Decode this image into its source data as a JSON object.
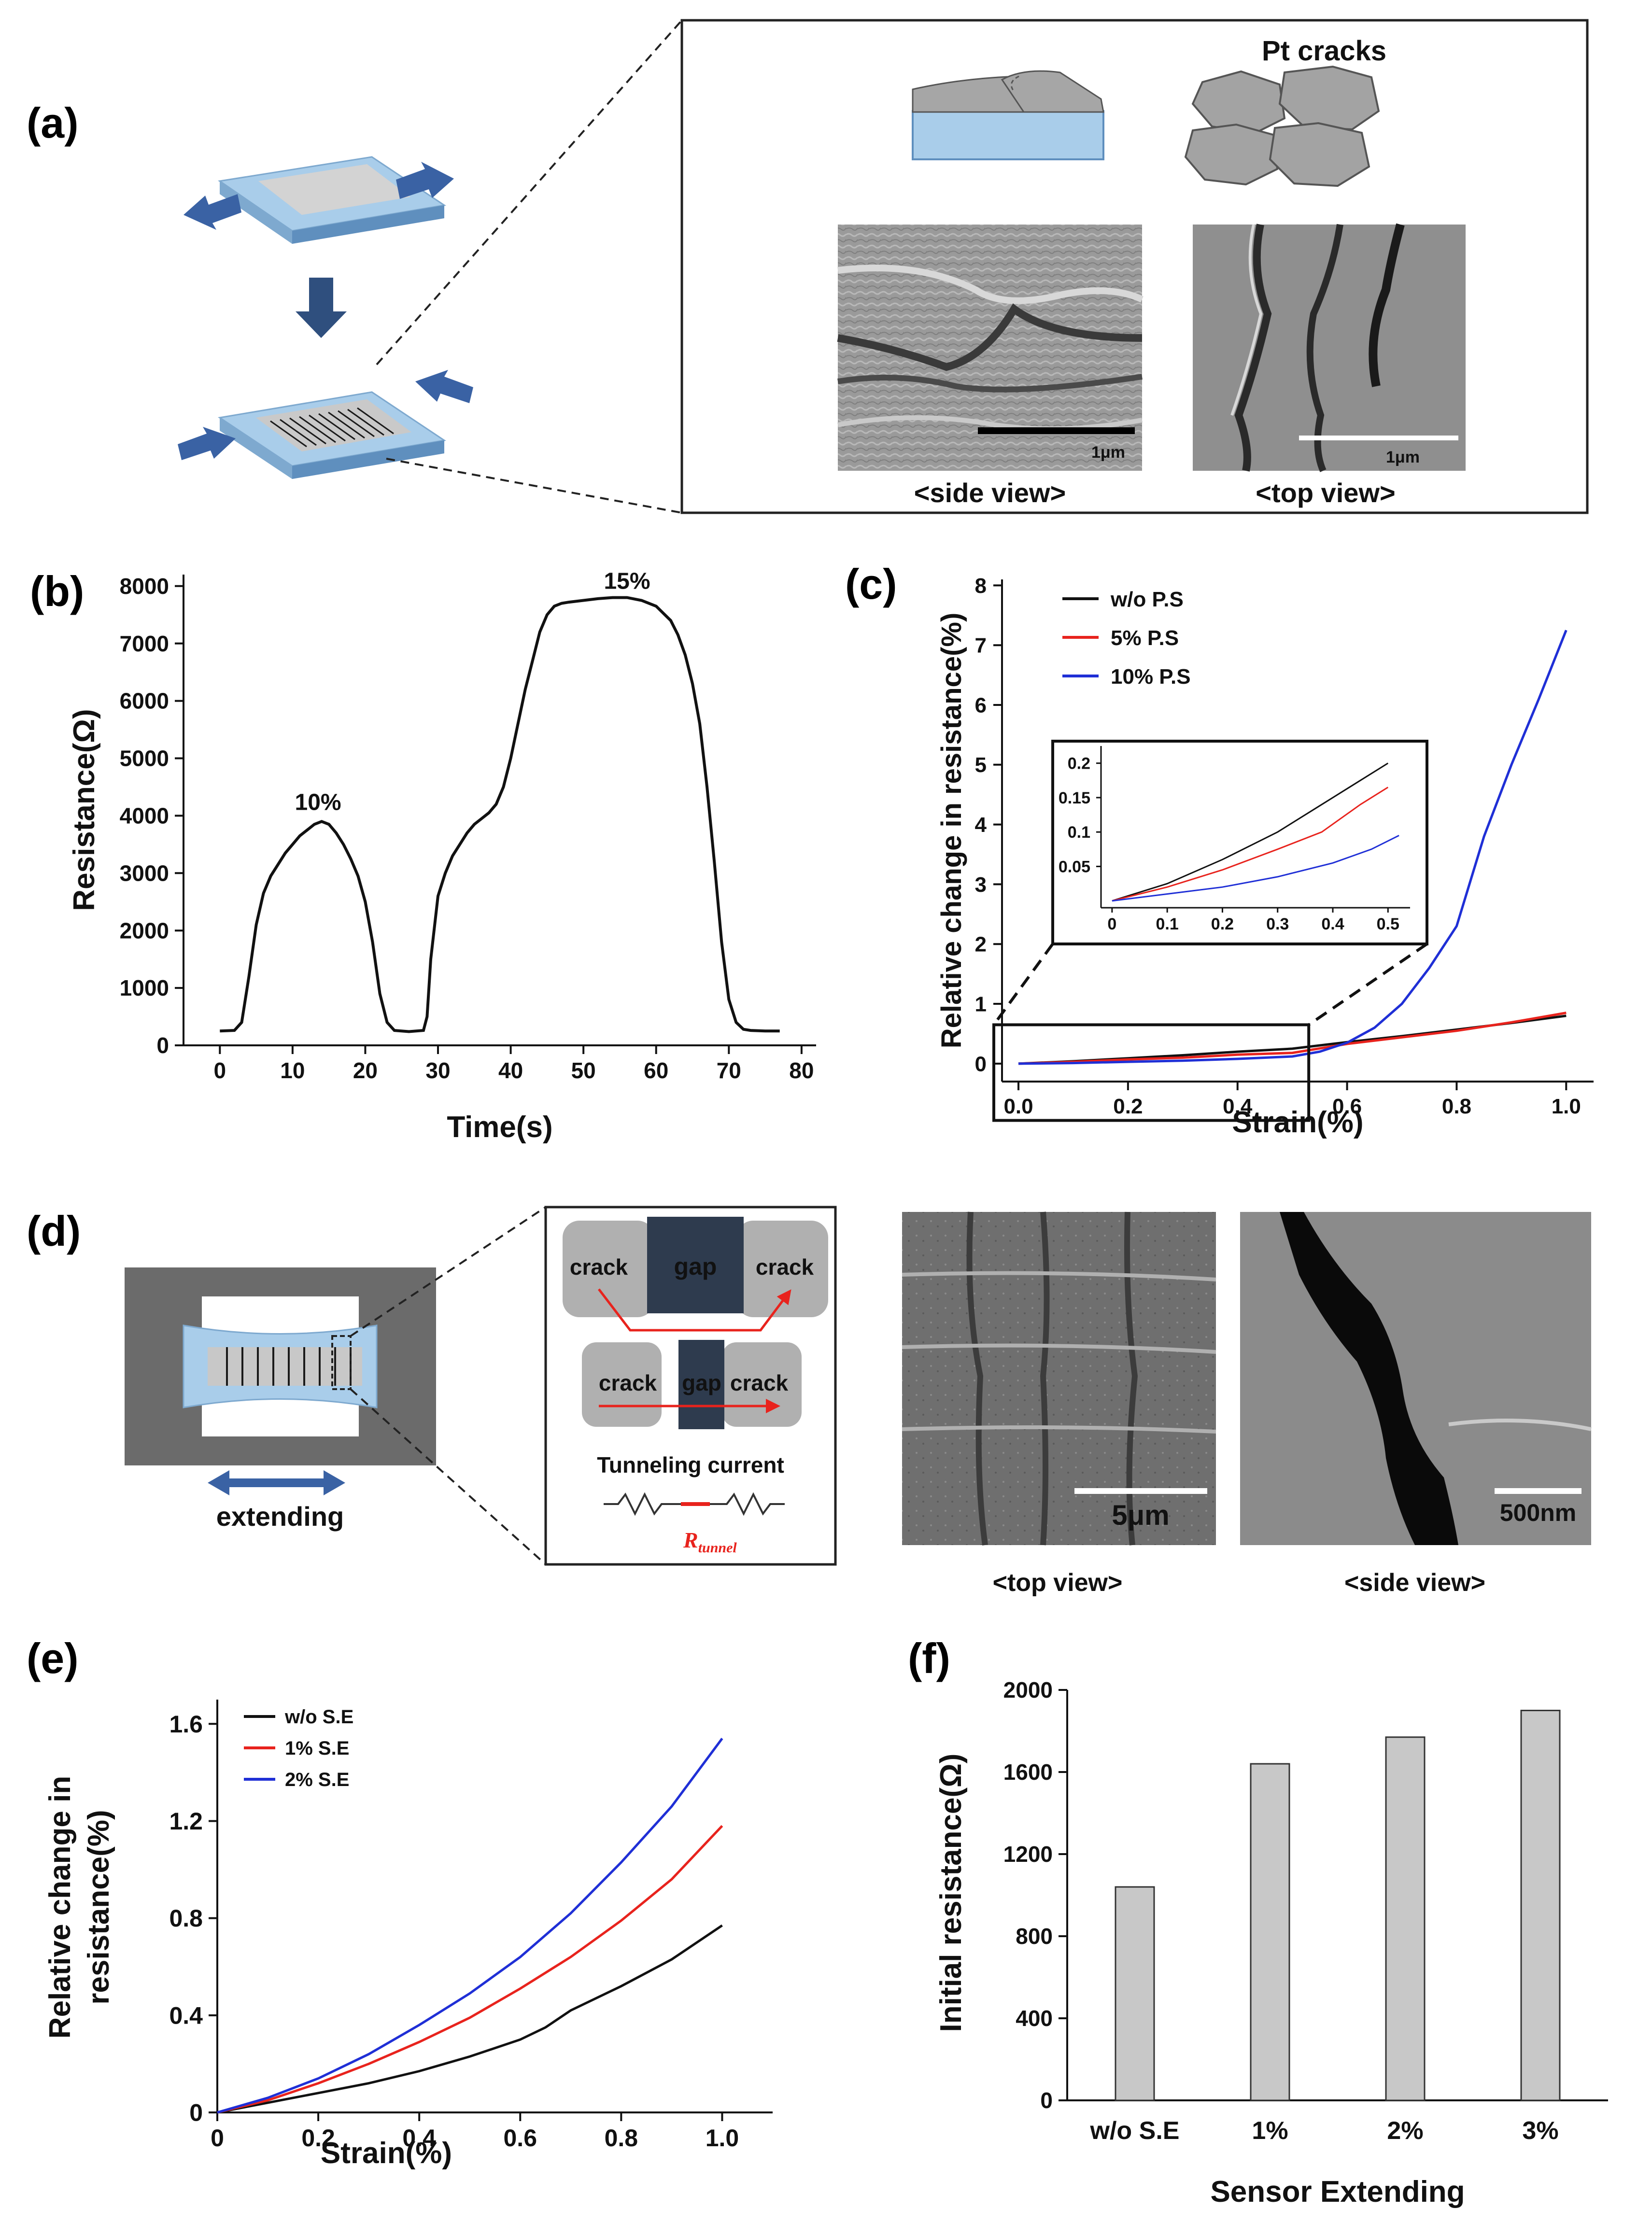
{
  "panel_labels": [
    "(a)",
    "(b)",
    "(c)",
    "(d)",
    "(e)",
    "(f)"
  ],
  "panel_a": {
    "title": "Pt cracks",
    "side_caption": "<side view>",
    "top_caption": "<top view>",
    "scale_side": "1μm",
    "scale_top": "1μm"
  },
  "panel_d": {
    "extending_label": "extending",
    "crack_label": "crack",
    "gap_label": "gap",
    "tunneling_label": "Tunneling current",
    "r_tunnel_main": "R",
    "r_tunnel_sub": "tunnel",
    "top_caption": "<top view>",
    "side_caption": "<side view>",
    "scale_top": "5μm",
    "scale_side": "500nm"
  },
  "colors": {
    "black": "#111111",
    "red": "#e8231d",
    "blue": "#1f2fd6",
    "substrate": "#a9cdea",
    "arrow": "#3a62a4",
    "gap": "#2e3b4e",
    "bar": "#c8c8c8"
  },
  "chart_data": [
    {
      "id": "b",
      "type": "line",
      "xlabel": "Time(s)",
      "ylabel": "Resistance(Ω)",
      "xlim": [
        -5,
        82
      ],
      "ylim": [
        0,
        8200
      ],
      "xticks": [
        0,
        10,
        20,
        30,
        40,
        50,
        60,
        70,
        80
      ],
      "yticks": [
        0,
        1000,
        2000,
        3000,
        4000,
        5000,
        6000,
        7000,
        8000
      ],
      "annotations": [
        {
          "text": "10%",
          "x": 13.5,
          "y": 4100
        },
        {
          "text": "15%",
          "x": 56,
          "y": 7950
        }
      ],
      "series": [
        {
          "name": "Resistance",
          "color": "black",
          "x": [
            0,
            2,
            3,
            4,
            5,
            6,
            7,
            8,
            9,
            10,
            11,
            12,
            13,
            14,
            15,
            16,
            17,
            18,
            19,
            20,
            21,
            22,
            23,
            24,
            26,
            28,
            28.5,
            29,
            30,
            31,
            32,
            33,
            34,
            35,
            36,
            37,
            38,
            39,
            40,
            41,
            42,
            43,
            44,
            45,
            46,
            47,
            48,
            50,
            52,
            54,
            56,
            58,
            60,
            62,
            63,
            64,
            65,
            66,
            67,
            68,
            69,
            70,
            71,
            72,
            73,
            75,
            77
          ],
          "y": [
            250,
            260,
            400,
            1200,
            2100,
            2650,
            2950,
            3150,
            3350,
            3500,
            3650,
            3750,
            3850,
            3900,
            3850,
            3700,
            3500,
            3250,
            2950,
            2500,
            1800,
            900,
            400,
            260,
            240,
            260,
            500,
            1500,
            2600,
            3000,
            3300,
            3500,
            3700,
            3850,
            3950,
            4050,
            4200,
            4500,
            5000,
            5600,
            6200,
            6700,
            7200,
            7500,
            7650,
            7700,
            7720,
            7750,
            7780,
            7800,
            7800,
            7750,
            7650,
            7400,
            7150,
            6800,
            6300,
            5600,
            4500,
            3200,
            1800,
            800,
            400,
            280,
            260,
            250,
            250
          ]
        }
      ]
    },
    {
      "id": "c",
      "type": "line",
      "xlabel": "Strain(%)",
      "ylabel": "Relative change in resistance(%)",
      "xlim": [
        -0.03,
        1.05
      ],
      "ylim": [
        -0.3,
        8.1
      ],
      "xticks": [
        0.0,
        0.2,
        0.4,
        0.6,
        0.8,
        1.0
      ],
      "xtick_labels": [
        "0.0",
        "0.2",
        "0.4",
        "0.6",
        "0.8",
        "1.0"
      ],
      "yticks": [
        0,
        1,
        2,
        3,
        4,
        5,
        6,
        7,
        8
      ],
      "legend": [
        "w/o P.S",
        "5% P.S",
        "10% P.S"
      ],
      "series": [
        {
          "name": "w/o P.S",
          "color": "black",
          "x": [
            0,
            0.1,
            0.2,
            0.3,
            0.4,
            0.5,
            0.6,
            0.7,
            0.8,
            0.9,
            1.0
          ],
          "y": [
            0,
            0.04,
            0.09,
            0.14,
            0.2,
            0.25,
            0.36,
            0.46,
            0.57,
            0.68,
            0.8
          ]
        },
        {
          "name": "5% P.S",
          "color": "red",
          "x": [
            0,
            0.1,
            0.2,
            0.3,
            0.4,
            0.5,
            0.6,
            0.7,
            0.8,
            0.9,
            1.0
          ],
          "y": [
            0,
            0.03,
            0.07,
            0.1,
            0.15,
            0.18,
            0.33,
            0.44,
            0.55,
            0.69,
            0.85
          ]
        },
        {
          "name": "10% P.S",
          "color": "blue",
          "x": [
            0,
            0.1,
            0.2,
            0.3,
            0.4,
            0.5,
            0.55,
            0.6,
            0.65,
            0.7,
            0.75,
            0.8,
            0.85,
            0.9,
            0.95,
            1.0
          ],
          "y": [
            0,
            0.01,
            0.03,
            0.05,
            0.08,
            0.12,
            0.2,
            0.35,
            0.6,
            1.0,
            1.6,
            2.3,
            3.8,
            5.0,
            6.1,
            7.25
          ]
        }
      ],
      "inset": {
        "xlim": [
          -0.02,
          0.54
        ],
        "ylim": [
          -0.01,
          0.225
        ],
        "xticks": [
          0,
          0.1,
          0.2,
          0.3,
          0.4,
          0.5
        ],
        "xtick_labels": [
          "0",
          "0.1",
          "0.2",
          "0.3",
          "0.4",
          "0.5"
        ],
        "yticks": [
          0.05,
          0.1,
          0.15,
          0.2
        ],
        "ytick_labels": [
          "0.05",
          "0.1",
          "0.15",
          "0.2"
        ],
        "series": [
          {
            "name": "w/o P.S",
            "color": "black",
            "x": [
              0,
              0.1,
              0.2,
              0.3,
              0.38,
              0.5
            ],
            "y": [
              0,
              0.025,
              0.06,
              0.1,
              0.14,
              0.2
            ]
          },
          {
            "name": "5% P.S",
            "color": "red",
            "x": [
              0,
              0.1,
              0.2,
              0.3,
              0.38,
              0.45,
              0.5
            ],
            "y": [
              0,
              0.02,
              0.045,
              0.075,
              0.1,
              0.14,
              0.165
            ]
          },
          {
            "name": "10% P.S",
            "color": "blue",
            "x": [
              0,
              0.1,
              0.2,
              0.3,
              0.4,
              0.47,
              0.52
            ],
            "y": [
              0,
              0.01,
              0.02,
              0.035,
              0.055,
              0.075,
              0.095
            ]
          }
        ]
      }
    },
    {
      "id": "e",
      "type": "line",
      "xlabel": "Strain(%)",
      "ylabel": "Relative change in resistance(%)",
      "ylabel_line1": "Relative change in",
      "ylabel_line2": "resistance(%)",
      "xlim": [
        0,
        1.1
      ],
      "ylim": [
        0,
        1.7
      ],
      "xticks": [
        0,
        0.2,
        0.4,
        0.6,
        0.8,
        1.0
      ],
      "xtick_labels": [
        "0",
        "0.2",
        "0.4",
        "0.6",
        "0.8",
        "1.0"
      ],
      "yticks": [
        0,
        0.4,
        0.8,
        1.2,
        1.6
      ],
      "ytick_labels": [
        "0",
        "0.4",
        "0.8",
        "1.2",
        "1.6"
      ],
      "legend": [
        "w/o S.E",
        "1% S.E",
        "2% S.E"
      ],
      "series": [
        {
          "name": "w/o S.E",
          "color": "black",
          "x": [
            0,
            0.1,
            0.2,
            0.3,
            0.4,
            0.5,
            0.6,
            0.65,
            0.7,
            0.8,
            0.9,
            1.0
          ],
          "y": [
            0,
            0.04,
            0.08,
            0.12,
            0.17,
            0.23,
            0.3,
            0.35,
            0.42,
            0.52,
            0.63,
            0.77
          ]
        },
        {
          "name": "1% S.E",
          "color": "red",
          "x": [
            0,
            0.1,
            0.2,
            0.3,
            0.4,
            0.5,
            0.6,
            0.7,
            0.8,
            0.9,
            1.0
          ],
          "y": [
            0,
            0.05,
            0.12,
            0.2,
            0.29,
            0.39,
            0.51,
            0.64,
            0.79,
            0.96,
            1.18
          ]
        },
        {
          "name": "2% S.E",
          "color": "blue",
          "x": [
            0,
            0.1,
            0.2,
            0.3,
            0.4,
            0.5,
            0.6,
            0.7,
            0.8,
            0.9,
            1.0
          ],
          "y": [
            0,
            0.06,
            0.14,
            0.24,
            0.36,
            0.49,
            0.64,
            0.82,
            1.03,
            1.26,
            1.54
          ]
        }
      ]
    },
    {
      "id": "f",
      "type": "bar",
      "xlabel": "Sensor Extending",
      "ylabel": "Initial resistance(Ω)",
      "categories": [
        "w/o S.E",
        "1%",
        "2%",
        "3%"
      ],
      "values": [
        1040,
        1640,
        1770,
        1900
      ],
      "ylim": [
        0,
        2000
      ],
      "yticks": [
        0,
        400,
        800,
        1200,
        1600,
        2000
      ]
    }
  ]
}
